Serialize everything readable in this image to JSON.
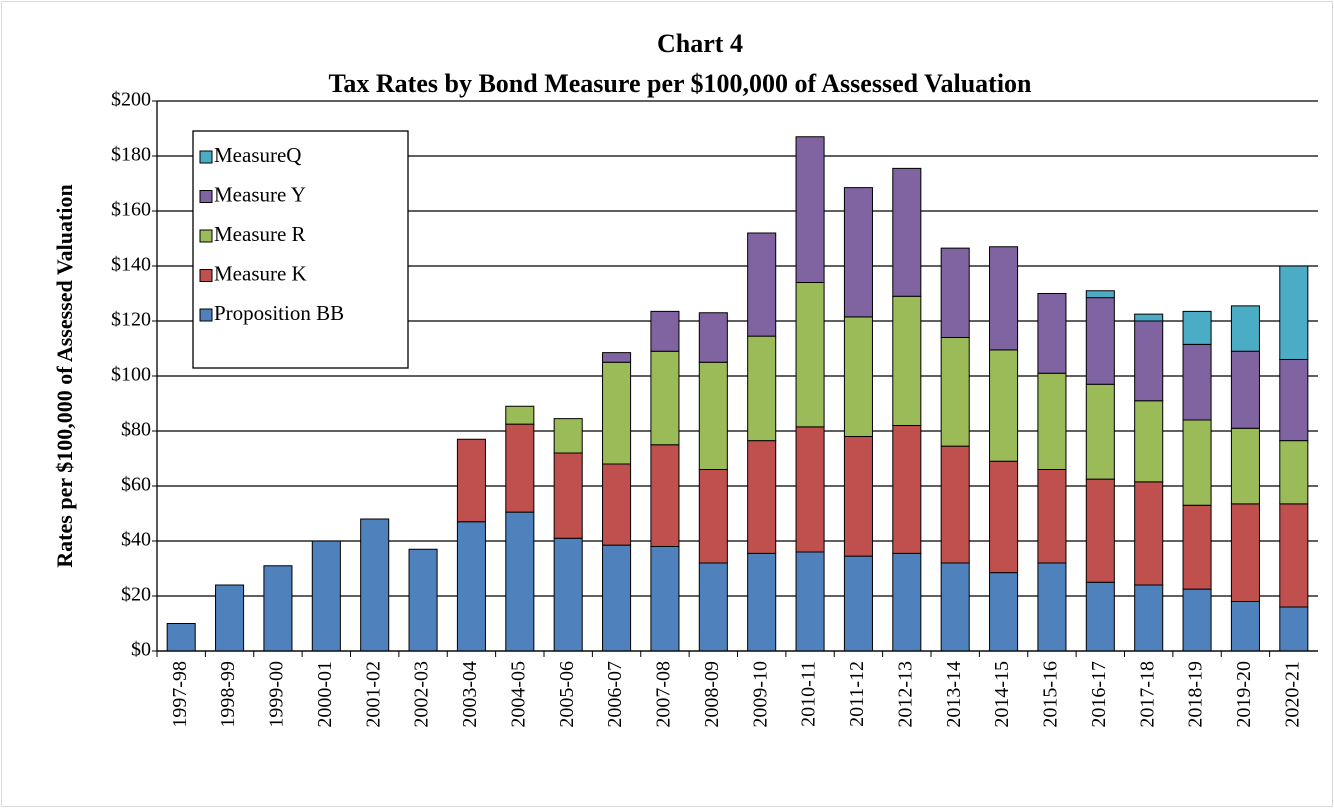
{
  "chart_data": {
    "type": "stacked_bar",
    "title": "Chart 4",
    "subtitle": "Tax Rates by Bond Measure per $100,000 of Assessed Valuation",
    "y_label": "Rates per $100,000 of Assessed Valuation",
    "categories": [
      "1997-98",
      "1998-99",
      "1999-00",
      "2000-01",
      "2001-02",
      "2002-03",
      "2003-04",
      "2004-05",
      "2005-06",
      "2006-07",
      "2007-08",
      "2008-09",
      "2009-10",
      "2010-11",
      "2011-12",
      "2012-13",
      "2013-14",
      "2014-15",
      "2015-16",
      "2016-17",
      "2017-18",
      "2018-19",
      "2019-20",
      "2020-21"
    ],
    "series": [
      {
        "name": "Proposition BB",
        "color": "#4f81bd",
        "values": [
          10,
          24,
          31,
          40,
          48,
          37,
          47,
          50.5,
          41,
          38.5,
          38,
          32,
          35.5,
          36,
          34.5,
          35.5,
          32,
          28.5,
          32,
          25,
          24,
          22.5,
          18,
          16
        ]
      },
      {
        "name": "Measure K",
        "color": "#c0504d",
        "values": [
          null,
          null,
          null,
          null,
          null,
          null,
          30,
          32,
          31,
          29.5,
          37,
          34,
          41,
          45.5,
          43.5,
          46.5,
          42.5,
          40.5,
          34,
          37.5,
          37.5,
          30.5,
          35.5,
          37.5
        ]
      },
      {
        "name": "Measure R",
        "color": "#9bbb59",
        "values": [
          null,
          null,
          null,
          null,
          null,
          null,
          null,
          6.5,
          12.5,
          37,
          34,
          39,
          38,
          52.5,
          43.5,
          47,
          39.5,
          40.5,
          35,
          34.5,
          29.5,
          31,
          27.5,
          23
        ]
      },
      {
        "name": "Measure Y",
        "color": "#8064a2",
        "values": [
          null,
          null,
          null,
          null,
          null,
          null,
          null,
          null,
          null,
          3.5,
          14.5,
          18,
          37.5,
          53,
          47,
          46.5,
          32.5,
          37.5,
          29,
          31.5,
          29,
          27.5,
          28,
          29.5
        ]
      },
      {
        "name": "MeasureQ",
        "color": "#4bacc6",
        "values": [
          null,
          null,
          null,
          null,
          null,
          null,
          null,
          null,
          null,
          null,
          null,
          null,
          null,
          null,
          null,
          null,
          null,
          null,
          null,
          2.5,
          2.5,
          12,
          16.5,
          34
        ]
      }
    ],
    "ylim": [
      0,
      200
    ],
    "yticks": [
      {
        "value": 0,
        "label": "$0"
      },
      {
        "value": 20,
        "label": "$20"
      },
      {
        "value": 40,
        "label": "$40"
      },
      {
        "value": 60,
        "label": "$60"
      },
      {
        "value": 80,
        "label": "$80"
      },
      {
        "value": 100,
        "label": "$100"
      },
      {
        "value": 120,
        "label": "$120"
      },
      {
        "value": 140,
        "label": "$140"
      },
      {
        "value": 160,
        "label": "$160"
      },
      {
        "value": 180,
        "label": "$180"
      },
      {
        "value": 200,
        "label": "$200"
      }
    ],
    "grid": true,
    "legend": "upper-left"
  }
}
